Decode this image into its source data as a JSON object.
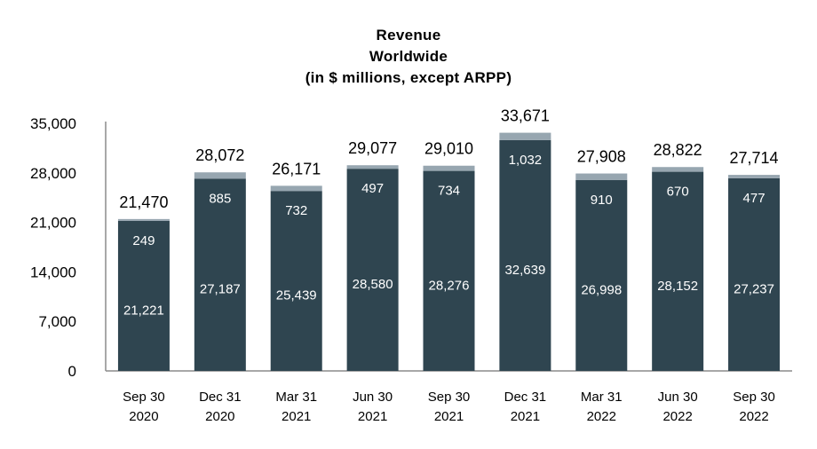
{
  "chart_data": {
    "type": "bar",
    "stacked": true,
    "title": [
      "Revenue",
      "Worldwide",
      "(in $ millions, except ARPP)"
    ],
    "categories": [
      [
        "Sep 30",
        "2020"
      ],
      [
        "Dec 31",
        "2020"
      ],
      [
        "Mar 31",
        "2021"
      ],
      [
        "Jun 30",
        "2021"
      ],
      [
        "Sep 30",
        "2021"
      ],
      [
        "Dec 31",
        "2021"
      ],
      [
        "Mar 31",
        "2022"
      ],
      [
        "Jun 30",
        "2022"
      ],
      [
        "Sep 30",
        "2022"
      ]
    ],
    "series": [
      {
        "name": "lower",
        "color": "#2f4550",
        "values": [
          21221,
          27187,
          25439,
          28580,
          28276,
          32639,
          26998,
          28152,
          27237
        ],
        "labels": [
          "21,221",
          "27,187",
          "25,439",
          "28,580",
          "28,276",
          "32,639",
          "26,998",
          "28,152",
          "27,237"
        ]
      },
      {
        "name": "upper",
        "color": "#97a6b0",
        "values": [
          249,
          885,
          732,
          497,
          734,
          1032,
          910,
          670,
          477
        ],
        "labels": [
          "249",
          "885",
          "732",
          "497",
          "734",
          "1,032",
          "910",
          "670",
          "477"
        ]
      }
    ],
    "totals": [
      "21,470",
      "28,072",
      "26,171",
      "29,077",
      "29,010",
      "33,671",
      "27,908",
      "28,822",
      "27,714"
    ],
    "yticks": [
      "0",
      "7,000",
      "14,000",
      "21,000",
      "28,000",
      "35,000"
    ],
    "ylim": [
      0,
      35000
    ],
    "xlabel": "",
    "ylabel": "",
    "grid": false,
    "legend": "none"
  }
}
